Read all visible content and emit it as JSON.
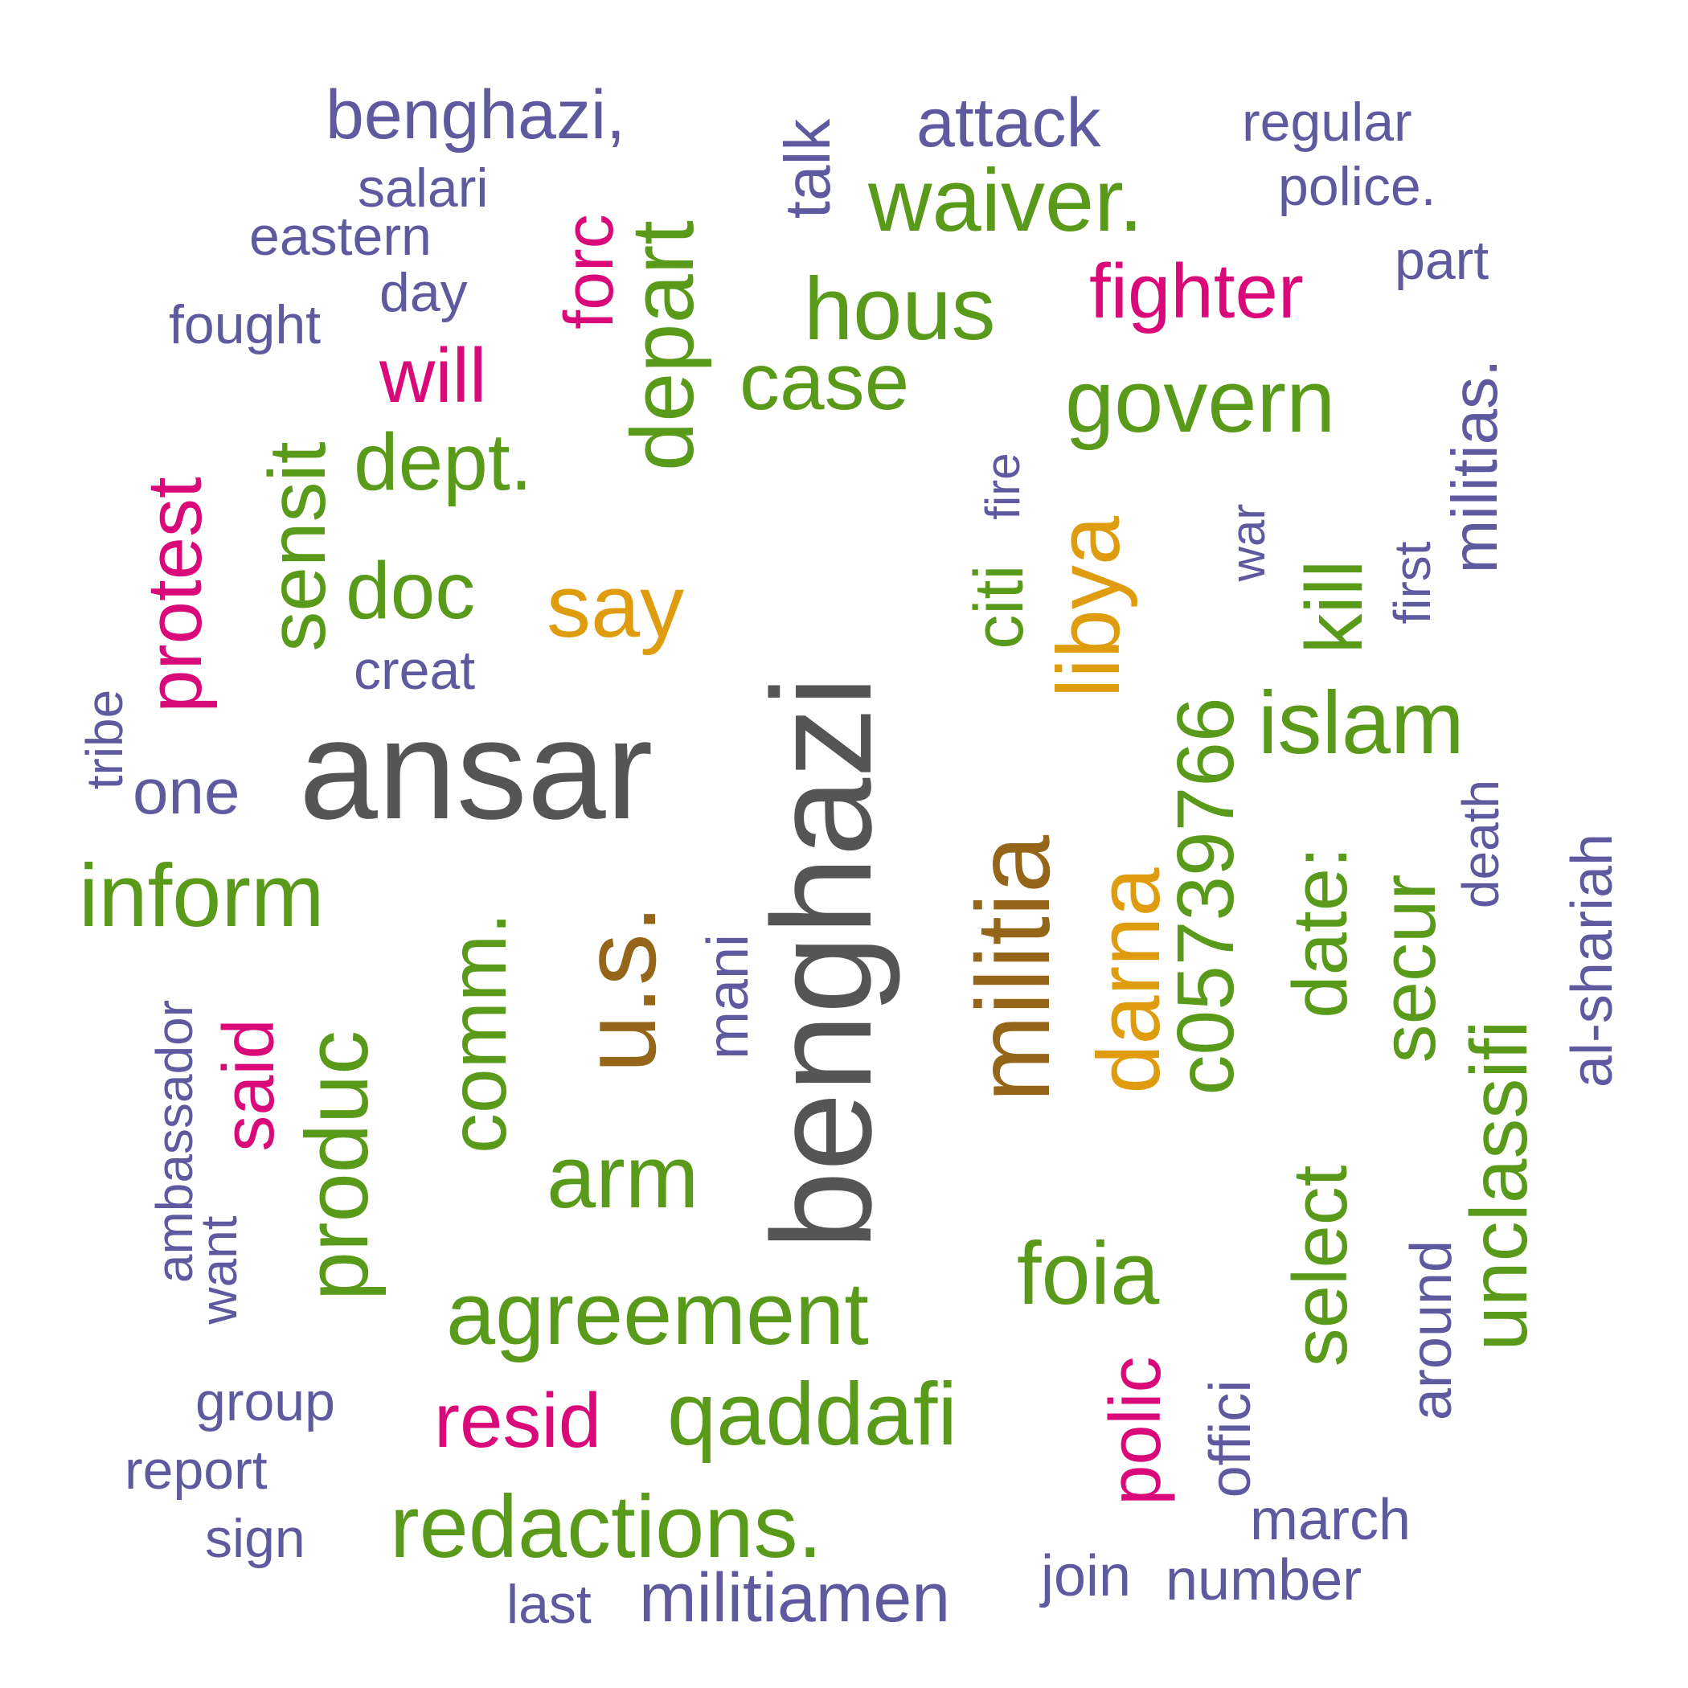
{
  "colors": {
    "grey": "#555555",
    "brown": "#956619",
    "orange": "#e09c0f",
    "green": "#5a9a1b",
    "pink": "#d9097a",
    "purple": "#5f5a9f"
  },
  "words": {
    "ansar": "ansar",
    "benghazi_big": "benghazi",
    "militia": "militia",
    "us": "u.s.",
    "darna": "darna",
    "libya": "libya",
    "say": "say",
    "c05": "c05739766",
    "select": "select",
    "date": "date:",
    "unclassifi": "unclassifi",
    "secur": "secur",
    "islam": "islam",
    "kill": "kill",
    "govern": "govern",
    "inform": "inform",
    "comm": "comm.",
    "produc": "produc",
    "depart": "depart",
    "sensit": "sensit",
    "dept": "dept.",
    "doc": "doc",
    "case": "case",
    "hous": "hous",
    "waiver": "waiver.",
    "agreement": "agreement",
    "qaddafi": "qaddafi",
    "redactions": "redactions.",
    "foia": "foia",
    "arm": "arm",
    "citi": "citi",
    "fighter": "fighter",
    "forc": "forc",
    "will": "will",
    "protest": "protest",
    "said": "said",
    "resid": "resid",
    "polic": "polic",
    "benghazi_comma": "benghazi,",
    "attack": "attack",
    "regular": "regular",
    "police": "police.",
    "part": "part",
    "salari": "salari",
    "eastern": "eastern",
    "day": "day",
    "fought": "fought",
    "talk": "talk",
    "militias": "militias.",
    "first": "first",
    "war": "war",
    "fire": "fire",
    "creat": "creat",
    "one": "one",
    "tribe": "tribe",
    "mani": "mani",
    "ambassador": "ambassador",
    "want": "want",
    "death": "death",
    "al_shariah": "al-shariah",
    "around": "around",
    "offici": "offici",
    "march": "march",
    "number": "number",
    "join": "join",
    "militiamen": "militiamen",
    "last": "last",
    "group": "group",
    "report": "report",
    "sign": "sign"
  }
}
